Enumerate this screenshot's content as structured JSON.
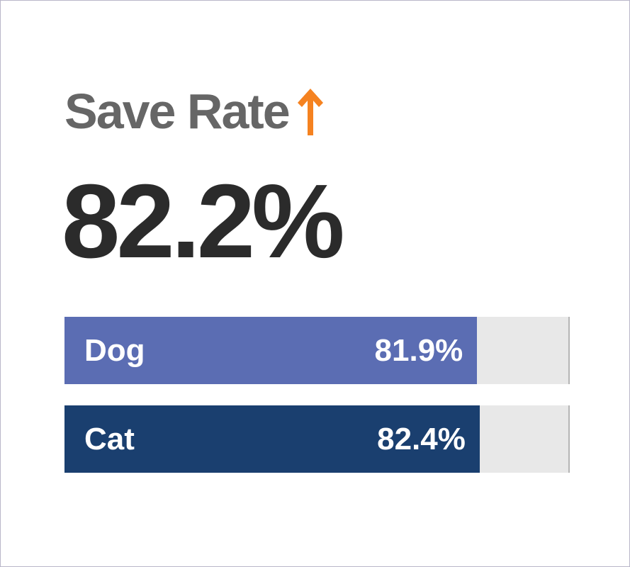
{
  "metric": {
    "title": "Save Rate",
    "trend_icon": "arrow-up-icon",
    "trend_color": "#f58220",
    "value": "82.2%"
  },
  "breakdown": [
    {
      "label": "Dog",
      "value_text": "81.9%",
      "fraction": 0.819,
      "color": "#5b6db3"
    },
    {
      "label": "Cat",
      "value_text": "82.4%",
      "fraction": 0.824,
      "color": "#1a3f6f"
    }
  ]
}
